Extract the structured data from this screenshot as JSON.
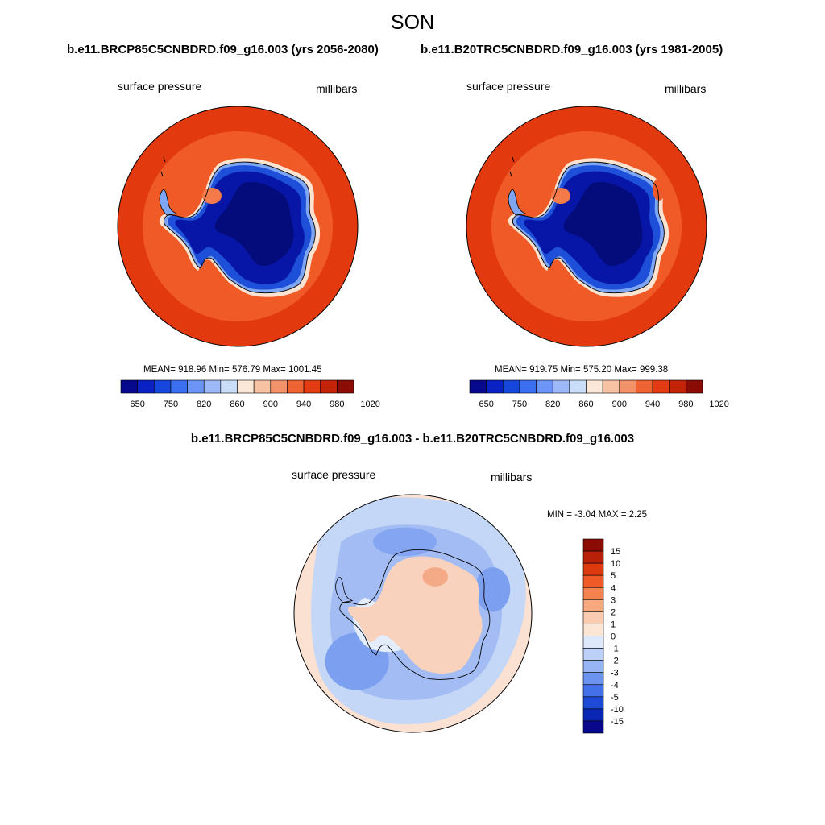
{
  "figure": {
    "season_title": "SON",
    "difference_title": "b.e11.BRCP85C5CNBDRD.f09_g16.003 - b.e11.B20TRC5CNBDRD.f09_g16.003"
  },
  "panels": [
    {
      "case_title": "b.e11.BRCP85C5CNBDRD.f09_g16.003 (yrs 2056-2080)",
      "variable": "surface pressure",
      "units": "millibars",
      "stats": "MEAN= 918.96  Min= 576.79  Max= 1001.45",
      "mean": 918.96,
      "min": 576.79,
      "max": 1001.45
    },
    {
      "case_title": "b.e11.B20TRC5CNBDRD.f09_g16.003 (yrs 1981-2005)",
      "variable": "surface pressure",
      "units": "millibars",
      "stats": "MEAN= 919.75  Min= 575.20  Max= 999.38",
      "mean": 919.75,
      "min": 575.2,
      "max": 999.38
    }
  ],
  "difference_panel": {
    "variable": "surface pressure",
    "units": "millibars",
    "stats": "MIN =  -3.04 MAX =   2.25",
    "min": -3.04,
    "max": 2.25
  },
  "colorbar_abs": {
    "tick_labels": [
      "650",
      "750",
      "820",
      "860",
      "900",
      "940",
      "980",
      "1020"
    ],
    "colors": [
      "#08088c",
      "#0a22c4",
      "#1746dc",
      "#3b6ef0",
      "#6a94f5",
      "#9cb8f7",
      "#c9dcf8",
      "#fbe8d8",
      "#f7c2a4",
      "#f3926a",
      "#ef6232",
      "#e43c12",
      "#c32308",
      "#8a0c04"
    ]
  },
  "colorbar_diff": {
    "tick_labels": [
      "15",
      "10",
      "5",
      "4",
      "3",
      "2",
      "1",
      "0",
      "-1",
      "-2",
      "-3",
      "-4",
      "-5",
      "-10",
      "-15"
    ],
    "colors": [
      "#8a0c04",
      "#b9200a",
      "#dd3a10",
      "#ef5a26",
      "#f3824e",
      "#f6a87e",
      "#f9cbb0",
      "#fbe6d6",
      "#dde8fa",
      "#bcd0f8",
      "#97b4f4",
      "#6c93f0",
      "#4470ea",
      "#1d4ad8",
      "#0a26b4",
      "#08088c"
    ]
  },
  "map_colors": {
    "ocean_outer": "#e3390f",
    "ocean_inner": "#ef5a26",
    "coast_warm": "#fbe3d2",
    "ice_light": "#7fa6f3",
    "ice_mid": "#1e4fd8",
    "ice_deep": "#0716a6",
    "ice_core": "#040b7a",
    "diff_land_pos": "#f8d2bd",
    "diff_land_pos2": "#f4aa86",
    "diff_neg1": "#c5d7f7",
    "diff_neg2": "#a3bdf4",
    "diff_neg3": "#7c9ff0",
    "diff_zero": "#e4edfb",
    "diff_rim_pos": "#fbe1d1"
  }
}
